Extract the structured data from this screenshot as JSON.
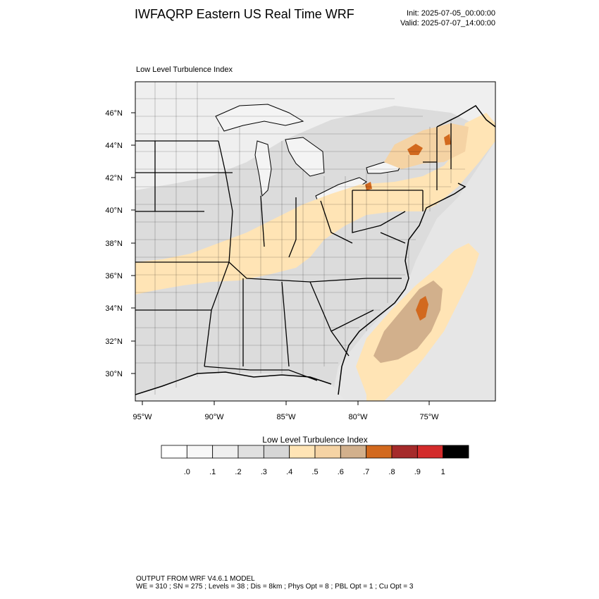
{
  "header": {
    "title": "IWFAQRP Eastern US Real Time WRF",
    "init": "Init: 2025-07-05_00:00:00",
    "valid": "Valid: 2025-07-07_14:00:00"
  },
  "map": {
    "subtitle": "Low Level Turbulence Index",
    "lat_labels": [
      "46°N",
      "44°N",
      "42°N",
      "40°N",
      "38°N",
      "36°N",
      "34°N",
      "32°N",
      "30°N"
    ],
    "lon_labels": [
      "95°W",
      "90°W",
      "85°W",
      "80°W",
      "75°W"
    ]
  },
  "colorbar": {
    "title": "Low Level Turbulence Index",
    "colors": [
      "#ffffff",
      "#f7f7f7",
      "#efefef",
      "#e0e0e0",
      "#d6d6d6",
      "#ffe4b5",
      "#f5d3a4",
      "#d2b08c",
      "#d2691e",
      "#a52a2a",
      "#d32b2b",
      "#000000"
    ],
    "labels": [
      ".0",
      ".1",
      ".2",
      ".3",
      ".4",
      ".5",
      ".6",
      ".7",
      ".8",
      ".9",
      "1"
    ]
  },
  "footer": {
    "line1": "OUTPUT FROM WRF V4.6.1 MODEL",
    "line2": "WE = 310 ; SN = 275 ; Levels = 38 ; Dis = 8km ; Phys Opt = 8 ; PBL Opt = 1 ; Cu Opt = 3"
  }
}
